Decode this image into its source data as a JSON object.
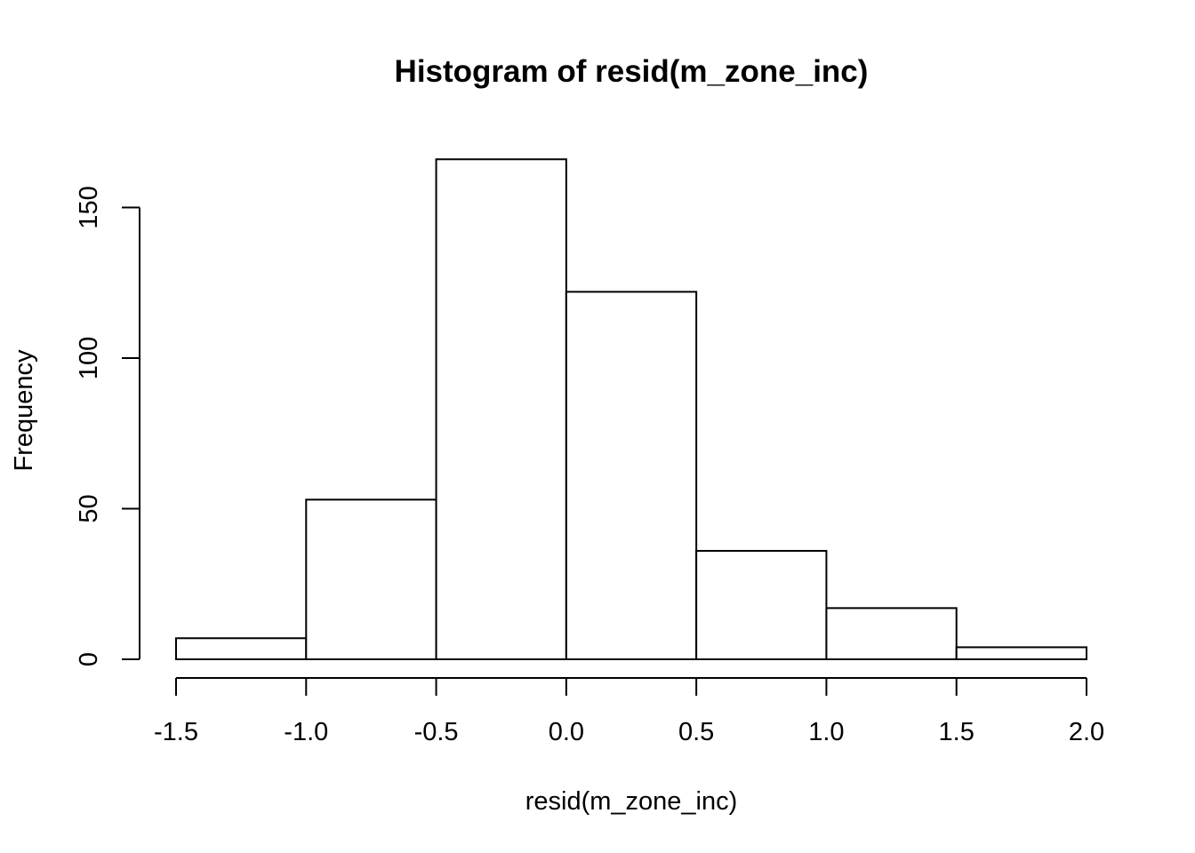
{
  "chart_data": {
    "type": "bar",
    "title": "Histogram of resid(m_zone_inc)",
    "xlabel": "resid(m_zone_inc)",
    "ylabel": "Frequency",
    "bins": [
      {
        "start": -1.5,
        "end": -1.0,
        "count": 7
      },
      {
        "start": -1.0,
        "end": -0.5,
        "count": 53
      },
      {
        "start": -0.5,
        "end": 0.0,
        "count": 166
      },
      {
        "start": 0.0,
        "end": 0.5,
        "count": 122
      },
      {
        "start": 0.5,
        "end": 1.0,
        "count": 36
      },
      {
        "start": 1.0,
        "end": 1.5,
        "count": 17
      },
      {
        "start": 1.5,
        "end": 2.0,
        "count": 4
      }
    ],
    "x_ticks": [
      -1.5,
      -1.0,
      -0.5,
      0.0,
      0.5,
      1.0,
      1.5,
      2.0
    ],
    "x_tick_labels": [
      "-1.5",
      "-1.0",
      "-0.5",
      "0.0",
      "0.5",
      "1.0",
      "1.5",
      "2.0"
    ],
    "y_ticks": [
      0,
      50,
      100,
      150
    ],
    "y_tick_labels": [
      "0",
      "50",
      "100",
      "150"
    ],
    "xlim": [
      -1.5,
      2.0
    ],
    "ylim": [
      0,
      166
    ],
    "grid": false,
    "bar_fill": "#ffffff",
    "bar_stroke": "#000000"
  }
}
